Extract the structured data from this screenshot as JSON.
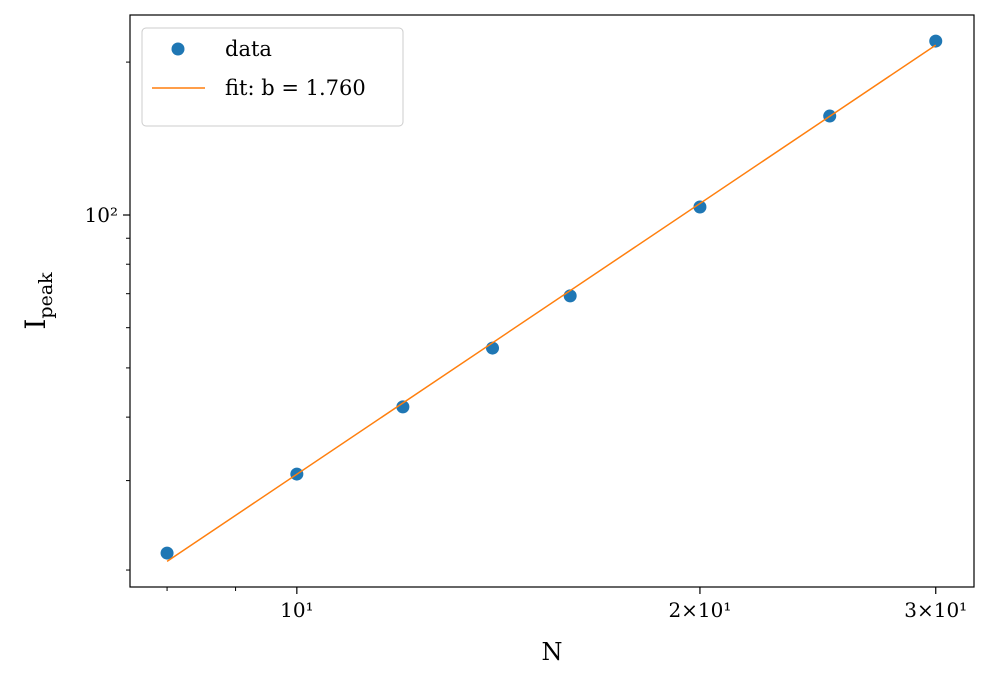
{
  "chart_data": {
    "type": "scatter",
    "xlabel": "N",
    "ylabel": "I",
    "ylabel_subscript": "peak",
    "xscale": "log",
    "yscale": "log",
    "xlim": [
      7.506,
      32.04
    ],
    "ylim": [
      18.52,
      247.6
    ],
    "xticks": [
      {
        "value": 10,
        "label": "10¹"
      },
      {
        "value": 20,
        "label": "2×10¹"
      },
      {
        "value": 30,
        "label": "3×10¹"
      }
    ],
    "xminorticks": [
      8,
      9
    ],
    "yticks": [
      {
        "value": 100,
        "label": "10²"
      }
    ],
    "yminorticks": [
      20,
      30,
      40,
      50,
      60,
      70,
      80,
      90,
      200
    ],
    "legend": "upper left",
    "series": [
      {
        "name": "data",
        "type": "scatter",
        "color": "#1f77b4",
        "x": [
          8,
          10,
          12,
          14,
          16,
          20,
          25,
          30
        ],
        "values": [
          21.6,
          30.9,
          41.9,
          54.7,
          69.3,
          103.7,
          156.6,
          220.0
        ]
      },
      {
        "name": "fit: b = 1.760",
        "type": "line",
        "color": "#ff7f0e",
        "x": [
          8,
          30
        ],
        "values": [
          20.8,
          216
        ]
      }
    ]
  }
}
